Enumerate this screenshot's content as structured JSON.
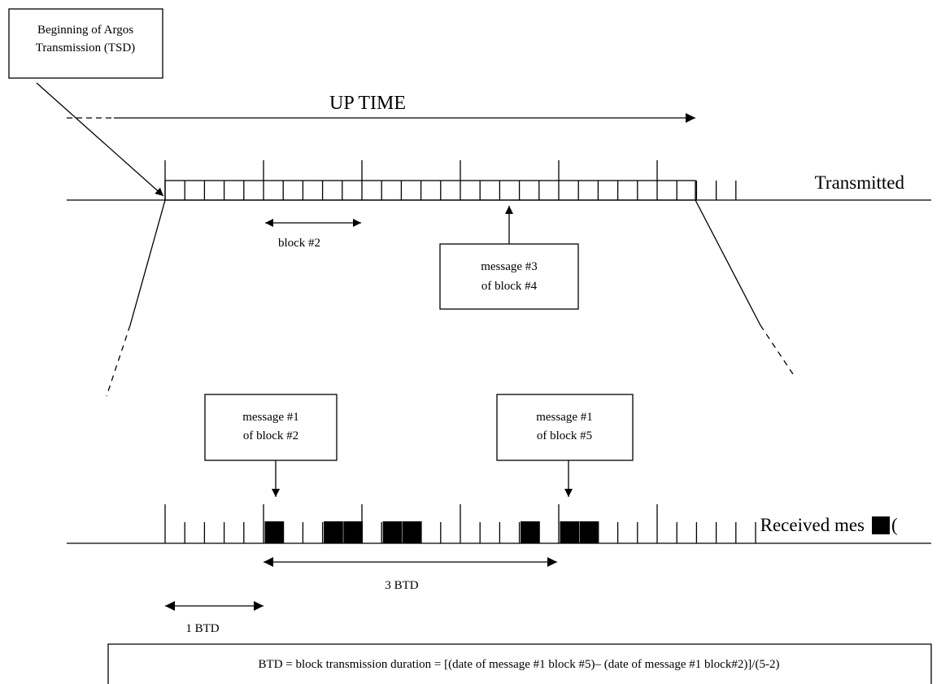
{
  "labels": {
    "tsd_box_line1": "Beginning of  Argos",
    "tsd_box_line2": "Transmission (TSD)",
    "up_time": "UP TIME",
    "transmitted": "Transmitted",
    "block2": "block #2",
    "msg3_b4_line1": "message #3",
    "msg3_b4_line2": "of block #4",
    "msg1_b2_line1": "message #1",
    "msg1_b2_line2": "of block #2",
    "msg1_b5_line1": "message #1",
    "msg1_b5_line2": "of block #5",
    "received": "Received mes",
    "received_paren": "(",
    "three_btd": "3 BTD",
    "one_btd": "1 BTD",
    "formula": "BTD = block transmission duration = [(date of message #1 block #5)– (date of message #1 block#2)]/(5-2)"
  },
  "structure": {
    "transmitted_blocks": 6,
    "messages_per_block": 5,
    "received_filled": [
      [
        1,
        1
      ],
      [
        1,
        4
      ],
      [
        1,
        5
      ],
      [
        2,
        2
      ],
      [
        2,
        3
      ],
      [
        3,
        4
      ],
      [
        4,
        1
      ],
      [
        4,
        2
      ]
    ]
  }
}
